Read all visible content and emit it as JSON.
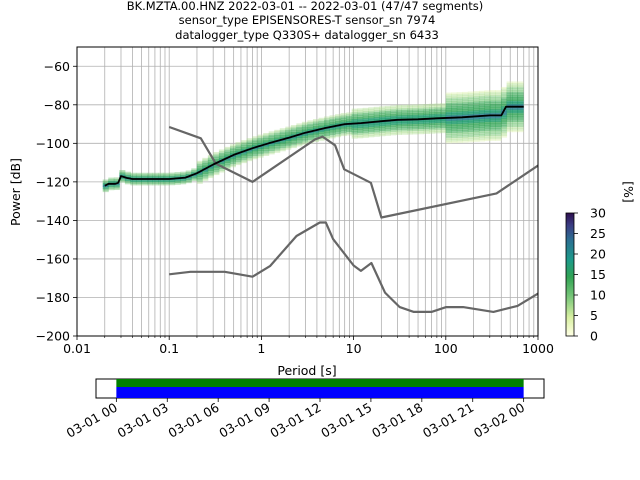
{
  "chart_data": {
    "type": "line",
    "title_lines": [
      "BK.MZTA.00.HNZ   2022-03-01 -- 2022-03-01  (47/47 segments)",
      "sensor_type EPISENSORES-T sensor_sn 7974",
      "datalogger_type Q330S+ datalogger_sn 6433"
    ],
    "xlabel": "Period [s]",
    "ylabel": "Power [dB]",
    "xscale": "log",
    "xlim": [
      0.01,
      1000
    ],
    "ylim": [
      -200,
      -50
    ],
    "x_ticks": [
      0.01,
      0.1,
      1,
      10,
      100,
      1000
    ],
    "x_tick_labels": [
      "0.01",
      "0.1",
      "1",
      "10",
      "100",
      "1000"
    ],
    "y_ticks": [
      -200,
      -180,
      -160,
      -140,
      -120,
      -100,
      -80,
      -60
    ],
    "y_tick_labels": [
      "−200",
      "−180",
      "−160",
      "−140",
      "−120",
      "−100",
      "−80",
      "−60"
    ],
    "grid": true,
    "series": [
      {
        "role": "noise-model-high",
        "color": "#666666",
        "x": [
          0.1,
          0.22,
          0.32,
          0.8,
          3.8,
          4.6,
          6.3,
          7.9,
          15.4,
          20,
          354.8,
          1000
        ],
        "y": [
          -91.5,
          -97.4,
          -110.5,
          -120,
          -98,
          -96.5,
          -101,
          -113.5,
          -120.5,
          -138.5,
          -126,
          -111.5
        ]
      },
      {
        "role": "noise-model-low",
        "color": "#666666",
        "x": [
          0.1,
          0.17,
          0.4,
          0.8,
          1.24,
          2.4,
          4.3,
          5,
          6,
          10,
          12,
          15.6,
          21.9,
          31.6,
          45,
          70,
          101,
          154,
          328,
          600,
          1000
        ],
        "y": [
          -168,
          -166.7,
          -166.7,
          -169.2,
          -163.7,
          -148.1,
          -141.1,
          -141.1,
          -149.7,
          -163.4,
          -166.2,
          -162.1,
          -177.5,
          -185,
          -187.5,
          -187.5,
          -185,
          -185,
          -187.5,
          -184.4,
          -178
        ]
      },
      {
        "role": "mode",
        "color": "#000000",
        "x": [
          0.02,
          0.022,
          0.026,
          0.028,
          0.03,
          0.035,
          0.04,
          0.05,
          0.07,
          0.1,
          0.15,
          0.2,
          0.3,
          0.5,
          0.8,
          1.2,
          2,
          3,
          5,
          8,
          12,
          20,
          30,
          50,
          80,
          150,
          300,
          400,
          450,
          700
        ],
        "y": [
          -122,
          -121,
          -121,
          -120.5,
          -117,
          -118,
          -118.5,
          -118.5,
          -118.5,
          -118.5,
          -117.8,
          -115.5,
          -111,
          -106,
          -102.5,
          -100,
          -97,
          -94.5,
          -92,
          -90,
          -89.5,
          -88.5,
          -87.8,
          -87.5,
          -87,
          -86.5,
          -85.5,
          -85.5,
          -81,
          -81
        ]
      }
    ],
    "colorbar": {
      "label": "[%]",
      "min": 0,
      "max": 30,
      "ticks": [
        0,
        5,
        10,
        15,
        20,
        25,
        30
      ],
      "tick_labels": [
        "0",
        "5",
        "10",
        "15",
        "20",
        "25",
        "30"
      ]
    },
    "timeline": {
      "tick_labels": [
        "03-01 00",
        "03-01 03",
        "03-01 06",
        "03-01 09",
        "03-01 12",
        "03-01 15",
        "03-01 18",
        "03-01 21",
        "03-02 00"
      ],
      "bars": [
        {
          "role": "data-coverage",
          "color": "#008000",
          "start_hour": 0,
          "end_hour": 24
        },
        {
          "role": "gap-free",
          "color": "#0000ff",
          "start_hour": 0,
          "end_hour": 24
        }
      ],
      "range_hours": [
        -1.2,
        25.2
      ]
    }
  }
}
